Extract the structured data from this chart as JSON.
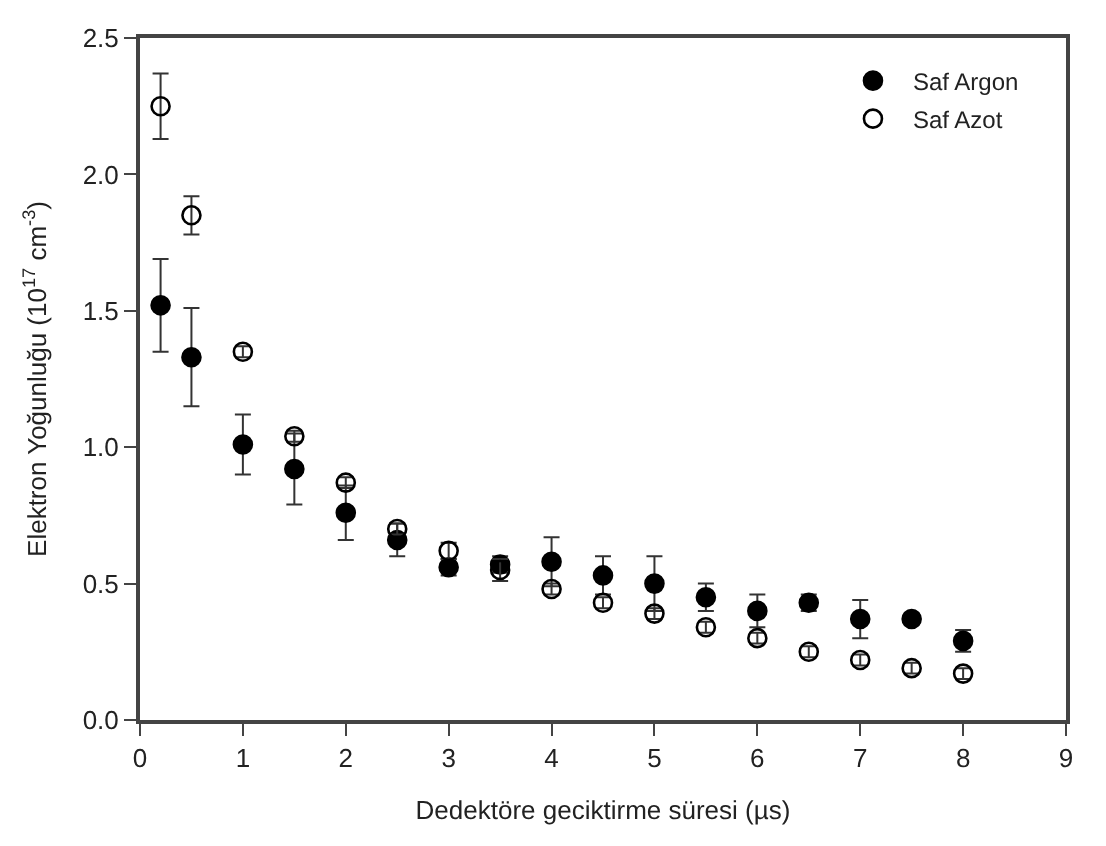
{
  "chart_data": {
    "type": "scatter",
    "xlabel": "Dedektöre geciktirme süresi (µs)",
    "ylabel": "Elektron Yoğunluğu (10$^{17}$ cm$^{-3}$)",
    "x": [
      0.2,
      0.5,
      1,
      1.5,
      2,
      2.5,
      3,
      3.5,
      4,
      4.5,
      5,
      5.5,
      6,
      6.5,
      7,
      7.5,
      8
    ],
    "series": [
      {
        "name": "Saf Argon",
        "color": "#000000",
        "marker": "circle",
        "values": [
          1.52,
          1.33,
          1.01,
          0.92,
          0.76,
          0.66,
          0.56,
          0.57,
          0.58,
          0.53,
          0.5,
          0.45,
          0.4,
          0.43,
          0.37,
          0.37,
          0.29
        ],
        "errors": [
          0.17,
          0.18,
          0.11,
          0.13,
          0.1,
          0.06,
          0.03,
          0.03,
          0.09,
          0.07,
          0.1,
          0.05,
          0.06,
          0.03,
          0.07,
          0.02,
          0.04
        ]
      },
      {
        "name": "Saf Azot",
        "color": "#000000",
        "marker": "circle-open",
        "values": [
          2.25,
          1.85,
          1.35,
          1.04,
          0.87,
          0.7,
          0.62,
          0.55,
          0.48,
          0.43,
          0.39,
          0.34,
          0.3,
          0.25,
          0.22,
          0.19,
          0.17
        ],
        "errors": [
          0.12,
          0.07,
          0.02,
          0.02,
          0.02,
          0.02,
          0.03,
          0.04,
          0.02,
          0.02,
          0.02,
          0.02,
          0.02,
          0.02,
          0.02,
          0.02,
          0.02
        ]
      }
    ],
    "xlim": [
      0,
      9
    ],
    "xticks": [
      0,
      1,
      2,
      3,
      4,
      5,
      6,
      7,
      8,
      9
    ],
    "ylim": [
      0,
      2.5
    ],
    "yticks": [
      {
        "value": 0,
        "label": "0.0"
      },
      {
        "value": 0.5,
        "label": "0.5"
      },
      {
        "value": 1,
        "label": "1.0"
      },
      {
        "value": 1.5,
        "label": "1.5"
      },
      {
        "value": 2,
        "label": "2.0"
      },
      {
        "value": 2.5,
        "label": "2.5"
      }
    ],
    "legend": "top right"
  }
}
